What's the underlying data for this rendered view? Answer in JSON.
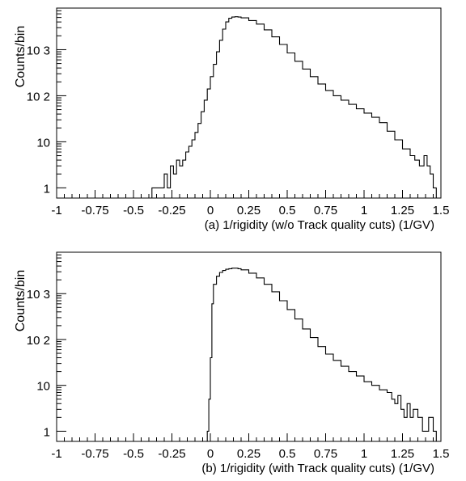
{
  "chart_data": [
    {
      "type": "histogram",
      "id": "a",
      "xlabel": "(a) 1/rigidity  (w/o Track quality cuts)  (1/GV)",
      "ylabel": "Counts/bin",
      "xlim": [
        -1,
        1.5
      ],
      "ylim": [
        0.6,
        8000
      ],
      "log_y": true,
      "x_ticks": [
        "-1",
        "-0.75",
        "-0.5",
        "-0.25",
        "0",
        "0.25",
        "0.5",
        "0.75",
        "1",
        "1.25",
        "1.5"
      ],
      "x_tick_values": [
        -1,
        -0.75,
        -0.5,
        -0.25,
        0,
        0.25,
        0.5,
        0.75,
        1,
        1.25,
        1.5
      ],
      "y_ticks": [
        "1",
        "10",
        "10 2",
        "10 3"
      ],
      "y_tick_values": [
        1,
        10,
        100,
        1000
      ],
      "grid": false,
      "series": [
        {
          "values": [
            [
              -0.38,
              1
            ],
            [
              -0.34,
              1
            ],
            [
              -0.32,
              1
            ],
            [
              -0.3,
              2
            ],
            [
              -0.28,
              1
            ],
            [
              -0.26,
              3
            ],
            [
              -0.24,
              2
            ],
            [
              -0.22,
              4
            ],
            [
              -0.2,
              3
            ],
            [
              -0.18,
              4
            ],
            [
              -0.16,
              6
            ],
            [
              -0.14,
              8
            ],
            [
              -0.12,
              11
            ],
            [
              -0.1,
              16
            ],
            [
              -0.08,
              25
            ],
            [
              -0.06,
              45
            ],
            [
              -0.04,
              80
            ],
            [
              -0.02,
              140
            ],
            [
              0.0,
              260
            ],
            [
              0.02,
              480
            ],
            [
              0.04,
              900
            ],
            [
              0.06,
              1600
            ],
            [
              0.08,
              2800
            ],
            [
              0.1,
              4000
            ],
            [
              0.12,
              4800
            ],
            [
              0.14,
              5100
            ],
            [
              0.16,
              5200
            ],
            [
              0.18,
              5100
            ],
            [
              0.2,
              4900
            ],
            [
              0.25,
              4300
            ],
            [
              0.3,
              3600
            ],
            [
              0.35,
              2700
            ],
            [
              0.4,
              1900
            ],
            [
              0.45,
              1300
            ],
            [
              0.5,
              850
            ],
            [
              0.55,
              560
            ],
            [
              0.6,
              380
            ],
            [
              0.65,
              260
            ],
            [
              0.7,
              180
            ],
            [
              0.75,
              130
            ],
            [
              0.8,
              100
            ],
            [
              0.85,
              80
            ],
            [
              0.9,
              65
            ],
            [
              0.95,
              52
            ],
            [
              1.0,
              42
            ],
            [
              1.05,
              34
            ],
            [
              1.1,
              26
            ],
            [
              1.15,
              17
            ],
            [
              1.2,
              11
            ],
            [
              1.25,
              7
            ],
            [
              1.3,
              5
            ],
            [
              1.33,
              4
            ],
            [
              1.36,
              3
            ],
            [
              1.39,
              5
            ],
            [
              1.41,
              3
            ],
            [
              1.43,
              2
            ],
            [
              1.45,
              1
            ]
          ]
        }
      ]
    },
    {
      "type": "histogram",
      "id": "b",
      "xlabel": "(b) 1/rigidity  (with Track quality cuts)  (1/GV)",
      "ylabel": "Counts/bin",
      "xlim": [
        -1,
        1.5
      ],
      "ylim": [
        0.6,
        8000
      ],
      "log_y": true,
      "x_ticks": [
        "-1",
        "-0.75",
        "-0.5",
        "-0.25",
        "0",
        "0.25",
        "0.5",
        "0.75",
        "1",
        "1.25",
        "1.5"
      ],
      "x_tick_values": [
        -1,
        -0.75,
        -0.5,
        -0.25,
        0,
        0.25,
        0.5,
        0.75,
        1,
        1.25,
        1.5
      ],
      "y_ticks": [
        "1",
        "10",
        "10 2",
        "10 3"
      ],
      "y_tick_values": [
        1,
        10,
        100,
        1000
      ],
      "grid": false,
      "series": [
        {
          "values": [
            [
              -0.02,
              1
            ],
            [
              -0.01,
              5
            ],
            [
              0.0,
              40
            ],
            [
              0.01,
              600
            ],
            [
              0.02,
              1600
            ],
            [
              0.04,
              2400
            ],
            [
              0.06,
              2900
            ],
            [
              0.08,
              3200
            ],
            [
              0.1,
              3400
            ],
            [
              0.12,
              3500
            ],
            [
              0.14,
              3600
            ],
            [
              0.16,
              3600
            ],
            [
              0.18,
              3500
            ],
            [
              0.2,
              3300
            ],
            [
              0.25,
              2800
            ],
            [
              0.3,
              2200
            ],
            [
              0.35,
              1600
            ],
            [
              0.4,
              1100
            ],
            [
              0.45,
              700
            ],
            [
              0.5,
              450
            ],
            [
              0.55,
              280
            ],
            [
              0.6,
              170
            ],
            [
              0.65,
              110
            ],
            [
              0.7,
              70
            ],
            [
              0.75,
              48
            ],
            [
              0.8,
              35
            ],
            [
              0.85,
              26
            ],
            [
              0.9,
              20
            ],
            [
              0.95,
              16
            ],
            [
              1.0,
              12
            ],
            [
              1.05,
              10
            ],
            [
              1.1,
              8
            ],
            [
              1.15,
              7
            ],
            [
              1.18,
              5
            ],
            [
              1.2,
              4
            ],
            [
              1.22,
              6
            ],
            [
              1.24,
              3
            ],
            [
              1.26,
              2
            ],
            [
              1.28,
              4
            ],
            [
              1.3,
              2
            ],
            [
              1.32,
              3
            ],
            [
              1.35,
              2
            ],
            [
              1.38,
              1
            ],
            [
              1.42,
              2
            ],
            [
              1.45,
              1
            ]
          ]
        }
      ]
    }
  ]
}
